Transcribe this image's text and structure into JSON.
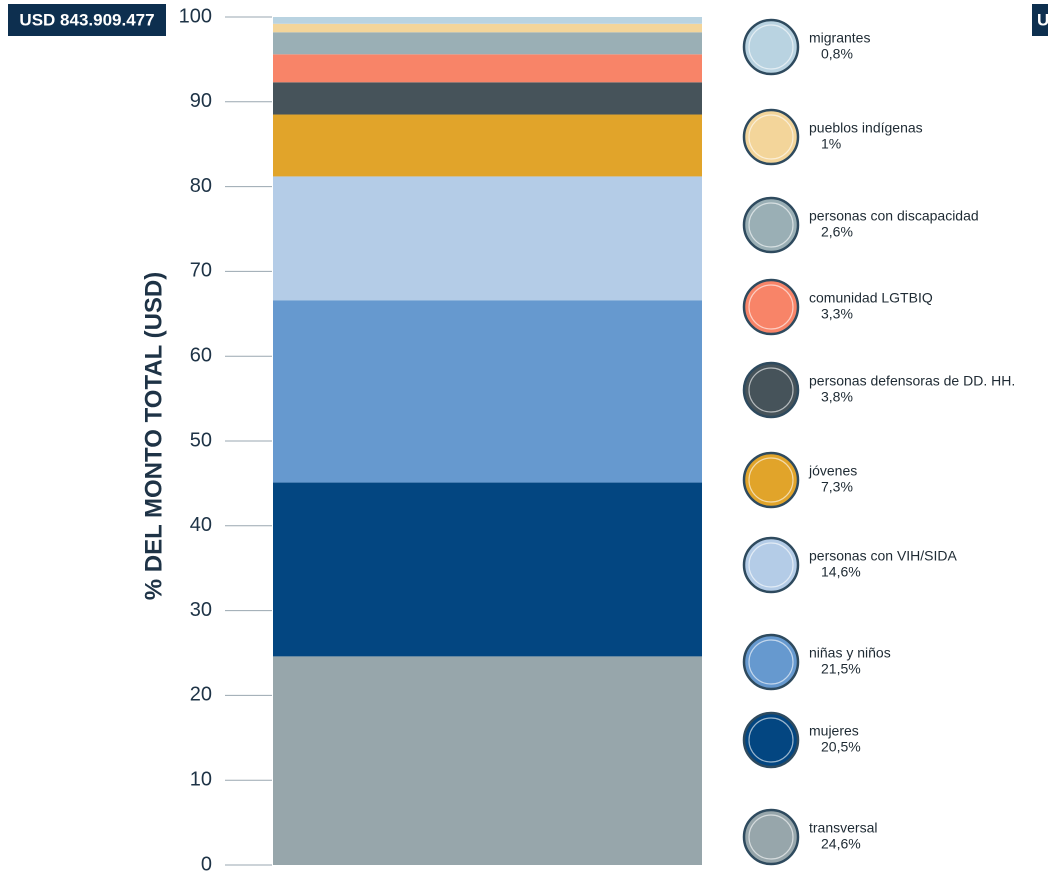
{
  "chart_data": {
    "type": "bar",
    "stacked": true,
    "badge": "USD 843.909.477",
    "badge_partial": "U",
    "ylabel": "% DEL MONTO TOTAL (USD)",
    "categories": [
      null
    ],
    "ylim": [
      0,
      100
    ],
    "yticks": [
      0,
      10,
      20,
      30,
      40,
      50,
      60,
      70,
      80,
      90,
      100
    ],
    "series": [
      {
        "name": "transversal",
        "color": "#97a6ab",
        "values": [
          24.6
        ],
        "value_labels": [
          "24,6%"
        ]
      },
      {
        "name": "mujeres",
        "color": "#034681",
        "values": [
          20.5
        ],
        "value_labels": [
          "20,5%"
        ]
      },
      {
        "name": "niñas y niños",
        "color": "#6699cf",
        "values": [
          21.5
        ],
        "value_labels": [
          "21,5%"
        ]
      },
      {
        "name": "personas con VIH/SIDA",
        "color": "#b4cce7",
        "values": [
          14.6
        ],
        "value_labels": [
          "14,6%"
        ]
      },
      {
        "name": "jóvenes",
        "color": "#e1a42a",
        "values": [
          7.3
        ],
        "value_labels": [
          "7,3%"
        ]
      },
      {
        "name": "personas defensoras de DD. HH.",
        "color": "#46535a",
        "values": [
          3.8
        ],
        "value_labels": [
          "3,8%"
        ]
      },
      {
        "name": "comunidad LGTBIQ",
        "color": "#f88468",
        "values": [
          3.3
        ],
        "value_labels": [
          "3,3%"
        ]
      },
      {
        "name": "personas con discapacidad",
        "color": "#9aafb5",
        "values": [
          2.6
        ],
        "value_labels": [
          "2,6%"
        ]
      },
      {
        "name": "pueblos indígenas",
        "color": "#f3d59a",
        "values": [
          1
        ],
        "value_labels": [
          "1%"
        ]
      },
      {
        "name": "migrantes",
        "color": "#b9d3e1",
        "values": [
          0.8
        ],
        "value_labels": [
          "0,8%"
        ]
      }
    ]
  }
}
